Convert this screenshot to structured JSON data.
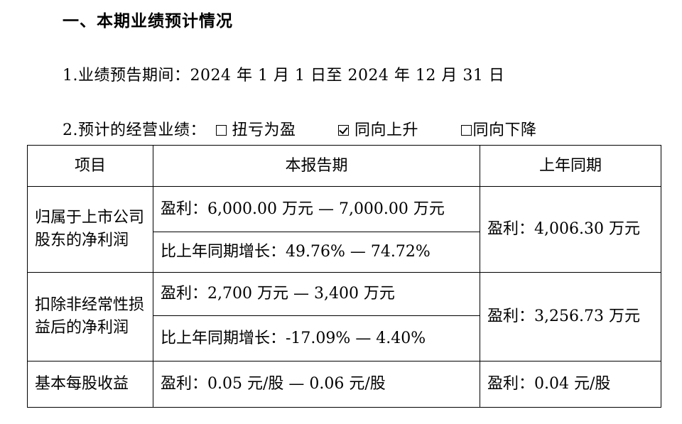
{
  "heading": "一、本期业绩预计情况",
  "period": {
    "label": "1.业绩预告期间：",
    "value": "2024 年 1 月 1 日至 2024 年 12 月 31 日"
  },
  "expected": {
    "label": "2.预计的经营业绩：",
    "options": [
      {
        "label": "扭亏为盈",
        "checked": false
      },
      {
        "label": "同向上升",
        "checked": true
      },
      {
        "label": "同向下降",
        "checked": false
      }
    ]
  },
  "table": {
    "headers": [
      "项目",
      "本报告期",
      "上年同期"
    ],
    "rows": [
      {
        "item": "归属于上市公司股东的净利润",
        "current_profit": "盈利：6,000.00 万元 — 7,000.00 万元",
        "current_growth": "比上年同期增长：49.76% — 74.72%",
        "prior": "盈利：4,006.30 万元"
      },
      {
        "item": "扣除非经常性损益后的净利润",
        "current_profit": "盈利：2,700 万元 — 3,400 万元",
        "current_growth": "比上年同期增长：-17.09% — 4.40%",
        "prior": "盈利：3,256.73 万元"
      },
      {
        "item": "基本每股收益",
        "current_profit": "盈利：0.05 元/股 — 0.06 元/股",
        "prior": "盈利：0.04 元/股"
      }
    ]
  }
}
